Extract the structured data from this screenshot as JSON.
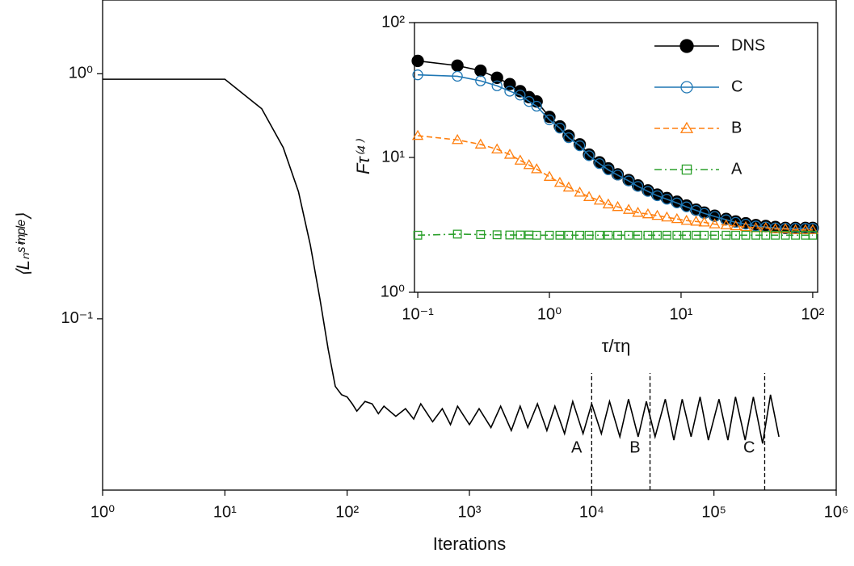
{
  "chart_data": [
    {
      "type": "line",
      "xlabel": "Iterations",
      "ylabel": "⟨Lₙˢⁱᵐᵖˡᵉ⟩",
      "xscale": "log",
      "yscale": "log",
      "xlim": [
        1,
        1000000
      ],
      "ylim": [
        0.02,
        2
      ],
      "xticks": [
        {
          "value": 1,
          "label": "10⁰"
        },
        {
          "value": 10,
          "label": "10¹"
        },
        {
          "value": 100,
          "label": "10²"
        },
        {
          "value": 1000,
          "label": "10³"
        },
        {
          "value": 10000,
          "label": "10⁴"
        },
        {
          "value": 100000,
          "label": "10⁵"
        },
        {
          "value": 1000000,
          "label": "10⁶"
        }
      ],
      "yticks": [
        {
          "value": 0.1,
          "label": "10⁻¹"
        },
        {
          "value": 1,
          "label": "10⁰"
        }
      ],
      "x": [
        1,
        10,
        20,
        30,
        40,
        50,
        60,
        70,
        80,
        90,
        100,
        110,
        120,
        140,
        160,
        180,
        200,
        250,
        300,
        350,
        400,
        500,
        600,
        700,
        800,
        1000,
        1200,
        1500,
        1800,
        2200,
        2600,
        3000,
        3600,
        4300,
        5000,
        6000,
        7000,
        8500,
        10000,
        12000,
        14000,
        17000,
        20000,
        24000,
        28000,
        33000,
        40000,
        47000,
        55000,
        65000,
        77000,
        90000,
        110000,
        130000,
        150000,
        180000,
        210000,
        250000,
        290000,
        340000
      ],
      "series": [
        {
          "color": "#000000",
          "linestyle": "solid",
          "marker": "none",
          "values": [
            0.95,
            0.95,
            0.72,
            0.5,
            0.33,
            0.2,
            0.12,
            0.075,
            0.053,
            0.049,
            0.048,
            0.045,
            0.042,
            0.046,
            0.045,
            0.041,
            0.044,
            0.04,
            0.043,
            0.039,
            0.045,
            0.038,
            0.043,
            0.037,
            0.044,
            0.037,
            0.043,
            0.036,
            0.044,
            0.035,
            0.044,
            0.036,
            0.045,
            0.035,
            0.044,
            0.034,
            0.046,
            0.034,
            0.045,
            0.034,
            0.046,
            0.033,
            0.047,
            0.033,
            0.046,
            0.033,
            0.047,
            0.032,
            0.047,
            0.033,
            0.048,
            0.032,
            0.047,
            0.032,
            0.048,
            0.032,
            0.048,
            0.031,
            0.049,
            0.033
          ]
        }
      ],
      "annotations": [
        {
          "x": 10000,
          "label": "A"
        },
        {
          "x": 30000,
          "label": "B"
        },
        {
          "x": 260000,
          "label": "C"
        }
      ]
    },
    {
      "type": "line",
      "xlabel": "τ/τη",
      "ylabel": "Fτ⁽⁴⁾",
      "xscale": "log",
      "yscale": "log",
      "xlim": [
        0.0944,
        109
      ],
      "ylim": [
        1,
        100
      ],
      "xticks": [
        {
          "value": 0.1,
          "label": "10⁻¹"
        },
        {
          "value": 1,
          "label": "10⁰"
        },
        {
          "value": 10,
          "label": "10¹"
        },
        {
          "value": 100,
          "label": "10²"
        }
      ],
      "yticks": [
        {
          "value": 1,
          "label": "10⁰"
        },
        {
          "value": 10,
          "label": "10¹"
        },
        {
          "value": 100,
          "label": "10²"
        }
      ],
      "legend": "upper right",
      "x": [
        0.1,
        0.2,
        0.3,
        0.4,
        0.5,
        0.6,
        0.7,
        0.8,
        1,
        1.2,
        1.4,
        1.7,
        2,
        2.4,
        2.8,
        3.3,
        4,
        4.7,
        5.6,
        6.6,
        7.8,
        9.3,
        11,
        13,
        15,
        18,
        22,
        26,
        31,
        37,
        44,
        52,
        62,
        74,
        88,
        100
      ],
      "series": [
        {
          "name": "DNS",
          "color": "#000000",
          "linestyle": "solid",
          "marker": "filled-circle",
          "values": [
            52,
            48,
            44,
            39,
            35,
            31,
            28,
            26,
            20,
            17,
            14.5,
            12.5,
            10.5,
            9.2,
            8.3,
            7.5,
            6.8,
            6.2,
            5.7,
            5.3,
            5,
            4.7,
            4.4,
            4.1,
            3.9,
            3.7,
            3.5,
            3.35,
            3.25,
            3.15,
            3.1,
            3.05,
            3,
            3,
            3,
            3
          ]
        },
        {
          "name": "C",
          "color": "#1f77b4",
          "linestyle": "solid",
          "marker": "circle",
          "values": [
            41,
            40,
            37,
            34,
            31,
            29,
            26,
            24,
            19,
            16.5,
            14,
            12.2,
            10.3,
            9,
            8.1,
            7.4,
            6.7,
            6.1,
            5.6,
            5.2,
            4.9,
            4.6,
            4.3,
            4.05,
            3.85,
            3.65,
            3.45,
            3.3,
            3.2,
            3.1,
            3.05,
            3,
            2.98,
            2.98,
            2.98,
            2.98
          ]
        },
        {
          "name": "B",
          "color": "#ff7f0e",
          "linestyle": "dashed",
          "marker": "triangle",
          "values": [
            14.5,
            13.5,
            12.5,
            11.5,
            10.5,
            9.5,
            8.8,
            8.2,
            7.2,
            6.5,
            6,
            5.5,
            5.1,
            4.8,
            4.5,
            4.3,
            4.1,
            3.9,
            3.8,
            3.7,
            3.6,
            3.5,
            3.4,
            3.35,
            3.3,
            3.2,
            3.15,
            3.1,
            3.05,
            3,
            3,
            2.95,
            2.95,
            2.9,
            2.9,
            2.9
          ]
        },
        {
          "name": "A",
          "color": "#2ca02c",
          "linestyle": "dashdot",
          "marker": "square",
          "values": [
            2.65,
            2.7,
            2.68,
            2.67,
            2.66,
            2.66,
            2.66,
            2.65,
            2.65,
            2.65,
            2.65,
            2.65,
            2.65,
            2.65,
            2.65,
            2.65,
            2.65,
            2.65,
            2.65,
            2.65,
            2.65,
            2.65,
            2.65,
            2.65,
            2.65,
            2.65,
            2.65,
            2.65,
            2.65,
            2.65,
            2.65,
            2.65,
            2.65,
            2.65,
            2.65,
            2.65
          ]
        }
      ]
    }
  ]
}
